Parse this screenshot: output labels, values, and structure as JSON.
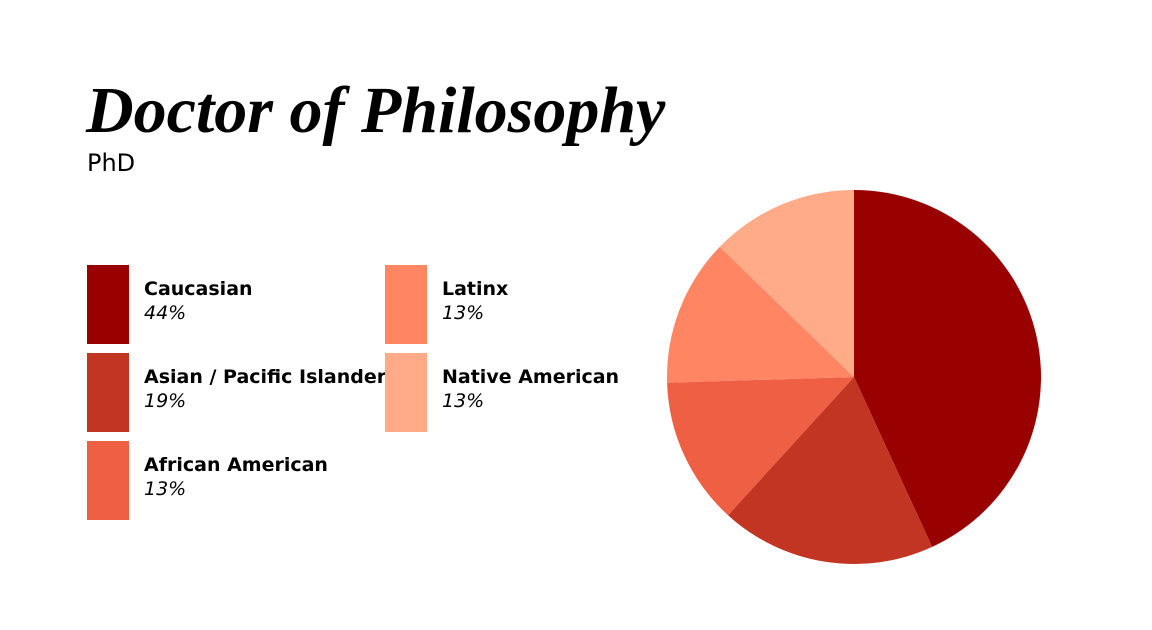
{
  "chart_data": {
    "type": "pie",
    "title": "Doctor of Philosophy",
    "subtitle": "PhD",
    "categories": [
      "Caucasian",
      "Asian / Pacific Islander",
      "African American",
      "Latinx",
      "Native American"
    ],
    "values": [
      44,
      19,
      13,
      13,
      13
    ],
    "value_labels": [
      "44%",
      "19%",
      "13%",
      "13%",
      "13%"
    ],
    "colors": [
      "#990000",
      "#c13522",
      "#ee5f44",
      "#ff8563",
      "#ffab87"
    ]
  }
}
